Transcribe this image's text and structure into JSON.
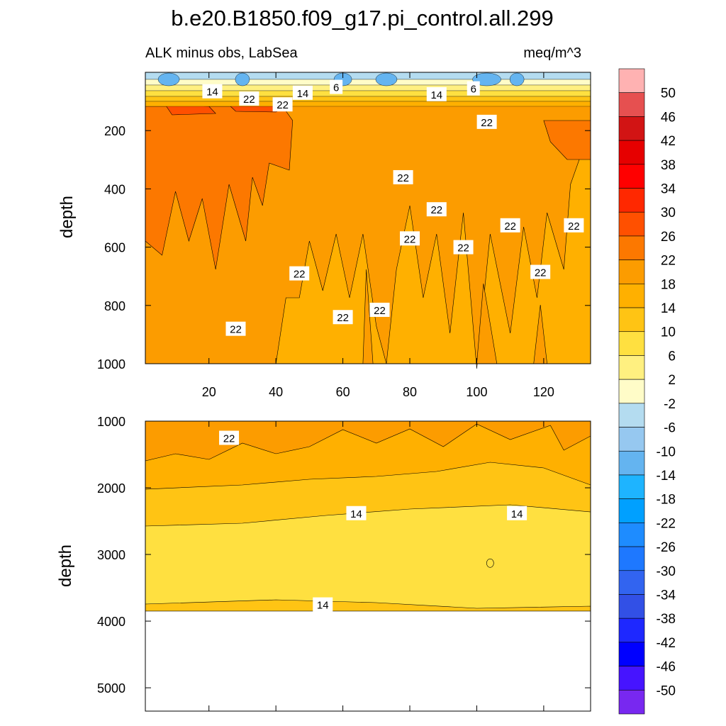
{
  "title": "b.e20.B1850.f09_g17.pi_control.all.299",
  "colors": {
    "background": "#ffffff",
    "deep": "#fc9c00",
    "mid": "#ffc414",
    "no_data": "#ffffff"
  },
  "chart_data": [
    {
      "type": "heatmap",
      "panel": "top",
      "subtitle_left": "ALK minus obs, LabSea",
      "subtitle_right": "meq/m^3",
      "ylabel": "depth",
      "xlabel": "",
      "xlim": [
        1,
        134
      ],
      "ylim": [
        1000,
        0
      ],
      "x_ticks": [
        20,
        40,
        60,
        80,
        100,
        120
      ],
      "y_ticks": [
        200,
        400,
        600,
        800,
        1000
      ],
      "contour_labels": [
        {
          "text": "14",
          "x": 21,
          "y": 65
        },
        {
          "text": "22",
          "x": 32,
          "y": 90
        },
        {
          "text": "14",
          "x": 48,
          "y": 70
        },
        {
          "text": "6",
          "x": 58,
          "y": 50
        },
        {
          "text": "22",
          "x": 42,
          "y": 110
        },
        {
          "text": "14",
          "x": 88,
          "y": 75
        },
        {
          "text": "6",
          "x": 99,
          "y": 55
        },
        {
          "text": "22",
          "x": 103,
          "y": 170
        },
        {
          "text": "22",
          "x": 78,
          "y": 360
        },
        {
          "text": "22",
          "x": 88,
          "y": 470
        },
        {
          "text": "22",
          "x": 80,
          "y": 570
        },
        {
          "text": "22",
          "x": 110,
          "y": 525
        },
        {
          "text": "22",
          "x": 129,
          "y": 525
        },
        {
          "text": "22",
          "x": 96,
          "y": 600
        },
        {
          "text": "22",
          "x": 47,
          "y": 690
        },
        {
          "text": "22",
          "x": 119,
          "y": 685
        },
        {
          "text": "22",
          "x": 71,
          "y": 815
        },
        {
          "text": "22",
          "x": 60,
          "y": 840
        },
        {
          "text": "22",
          "x": 28,
          "y": 880
        }
      ]
    },
    {
      "type": "heatmap",
      "panel": "bottom",
      "ylabel": "depth",
      "xlim": [
        1,
        134
      ],
      "ylim": [
        5350,
        1000
      ],
      "y_ticks": [
        1000,
        2000,
        3000,
        4000,
        5000
      ],
      "bottom_of_data": 3850,
      "contour_labels": [
        {
          "text": "22",
          "x": 26,
          "y": 1250
        },
        {
          "text": "14",
          "x": 64,
          "y": 2380
        },
        {
          "text": "14",
          "x": 112,
          "y": 2380
        },
        {
          "text": "14",
          "x": 54,
          "y": 3750
        }
      ]
    }
  ],
  "colorbar": {
    "labels": [
      "50",
      "46",
      "42",
      "38",
      "34",
      "30",
      "26",
      "22",
      "18",
      "14",
      "10",
      "6",
      "2",
      "-2",
      "-6",
      "-10",
      "-14",
      "-18",
      "-22",
      "-26",
      "-30",
      "-34",
      "-38",
      "-42",
      "-46",
      "-50"
    ],
    "colors": [
      "#ffb2b2",
      "#e65050",
      "#d21414",
      "#e60000",
      "#ff0000",
      "#ff2800",
      "#ff5000",
      "#fc7800",
      "#fc9c00",
      "#ffb000",
      "#ffc414",
      "#ffe040",
      "#fff080",
      "#fffcc8",
      "#b4dcf0",
      "#96c8f0",
      "#64b4f0",
      "#1eb4ff",
      "#00a0ff",
      "#1e8cff",
      "#1e78ff",
      "#3264f0",
      "#3250e6",
      "#1e28ff",
      "#0000ff",
      "#4614ff",
      "#7828f0"
    ]
  }
}
